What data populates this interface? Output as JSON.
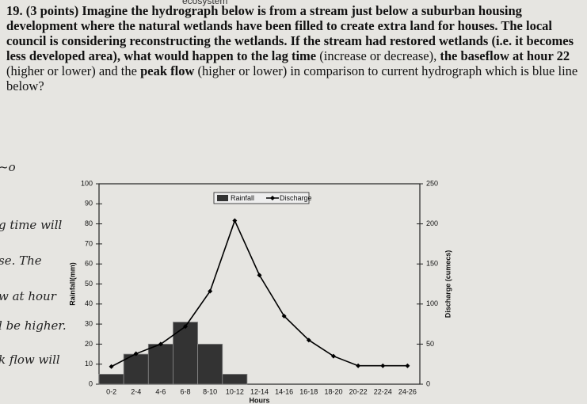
{
  "header": "ecosystem",
  "question": {
    "parts": [
      "19. (3 points)",
      " Imagine the hydrograph below is from a stream just below a suburban housing development where the natural wetlands have been filled to create extra land for houses. The local council is considering reconstructing the wetlands. If the stream had restored wetlands (i.e. it becomes less developed area), ",
      "what would happen to the lag time",
      " (increase or decrease), ",
      "the baseflow at hour 22",
      " (higher or lower) and the ",
      "peak flow",
      " (higher or lower) in comparison to current hydrograph which is blue line below?"
    ]
  },
  "handwriting": [
    "~o",
    "g time will",
    "se. The",
    "w at hour",
    "l be higher.",
    "k flow will"
  ],
  "chart_data": {
    "type": "combo",
    "categories": [
      "0-2",
      "2-4",
      "4-6",
      "6-8",
      "8-10",
      "10-12",
      "12-14",
      "14-16",
      "16-18",
      "18-20",
      "20-22",
      "22-24",
      "24-26"
    ],
    "series": [
      {
        "name": "Rainfall",
        "color": "#333333",
        "values": [
          5,
          15,
          20,
          31,
          20,
          5,
          0,
          0,
          0,
          0,
          0,
          0,
          0
        ]
      },
      {
        "name": "Discharge",
        "color": "#000000",
        "axis": "y2",
        "values": [
          22,
          38,
          50,
          72,
          116,
          204,
          136,
          85,
          55,
          35,
          23,
          23,
          23
        ]
      }
    ],
    "xlabel": "Hours",
    "ylabel": "Rainfall(mm)",
    "y2label": "Discharge (cumecs)",
    "ylim": [
      0,
      100
    ],
    "yticks": [
      0,
      10,
      20,
      30,
      40,
      50,
      60,
      70,
      80,
      90,
      100
    ],
    "y2lim": [
      0,
      250
    ],
    "y2ticks": [
      0,
      50,
      100,
      150,
      200,
      250
    ],
    "legend": "top"
  }
}
